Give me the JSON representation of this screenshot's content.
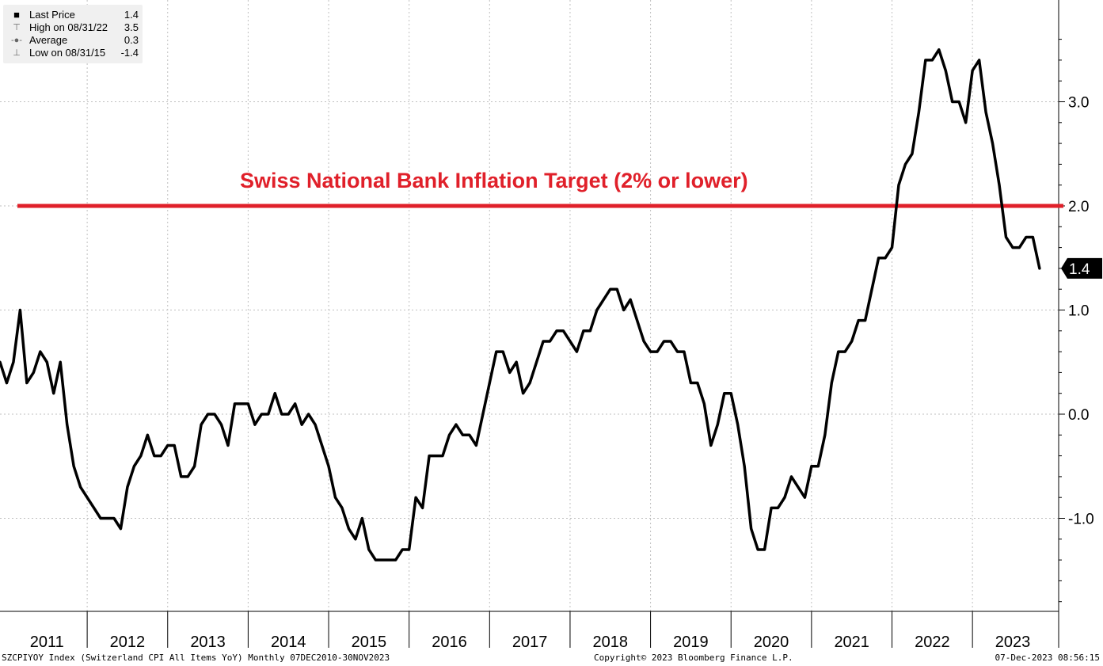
{
  "legend": {
    "items": [
      {
        "label": "Last Price",
        "value": "1.4",
        "icon": "filled-square-icon"
      },
      {
        "label": "High on 08/31/22",
        "value": "3.5",
        "icon": "high-marker-icon"
      },
      {
        "label": "Average",
        "value": "0.3",
        "icon": "average-marker-icon"
      },
      {
        "label": "Low on 08/31/15",
        "value": "-1.4",
        "icon": "low-marker-icon"
      }
    ]
  },
  "annotation": "Swiss National Bank Inflation Target (2% or lower)",
  "last_price_tag": "1.4",
  "footer": {
    "left": "SZCPIYOY Index (Switzerland CPI All Items YoY)  Monthly 07DEC2010-30NOV2023",
    "center": "Copyright© 2023 Bloomberg Finance L.P.",
    "right": "07-Dec-2023 08:56:15"
  },
  "colors": {
    "line": "#000000",
    "target_line": "#e0202a",
    "grid": "#bfbfbf"
  },
  "chart_data": {
    "type": "line",
    "title": "",
    "xlabel": "",
    "ylabel": "",
    "x_categories": [
      "2011",
      "2012",
      "2013",
      "2014",
      "2015",
      "2016",
      "2017",
      "2018",
      "2019",
      "2020",
      "2021",
      "2022",
      "2023"
    ],
    "y_ticks": [
      "3.0",
      "2.0",
      "1.0",
      "0.0",
      "-1.0"
    ],
    "ylim": [
      -1.9,
      3.9
    ],
    "grid": true,
    "legend_position": "top-left",
    "reference_line": {
      "value": 2.0,
      "label": "Swiss National Bank Inflation Target (2% or lower)"
    },
    "series": [
      {
        "name": "Last Price",
        "start": "2010-12",
        "frequency": "monthly",
        "values": [
          0.5,
          0.3,
          0.5,
          1.0,
          0.3,
          0.4,
          0.6,
          0.5,
          0.2,
          0.5,
          -0.1,
          -0.5,
          -0.7,
          -0.8,
          -0.9,
          -1.0,
          -1.0,
          -1.0,
          -1.1,
          -0.7,
          -0.5,
          -0.4,
          -0.2,
          -0.4,
          -0.4,
          -0.3,
          -0.3,
          -0.6,
          -0.6,
          -0.5,
          -0.1,
          0.0,
          0.0,
          -0.1,
          -0.3,
          0.1,
          0.1,
          0.1,
          -0.1,
          0.0,
          0.0,
          0.2,
          0.0,
          0.0,
          0.1,
          -0.1,
          0.0,
          -0.1,
          -0.3,
          -0.5,
          -0.8,
          -0.9,
          -1.1,
          -1.2,
          -1.0,
          -1.3,
          -1.4,
          -1.4,
          -1.4,
          -1.4,
          -1.3,
          -1.3,
          -0.8,
          -0.9,
          -0.4,
          -0.4,
          -0.4,
          -0.2,
          -0.1,
          -0.2,
          -0.2,
          -0.3,
          0.0,
          0.3,
          0.6,
          0.6,
          0.4,
          0.5,
          0.2,
          0.3,
          0.5,
          0.7,
          0.7,
          0.8,
          0.8,
          0.7,
          0.6,
          0.8,
          0.8,
          1.0,
          1.1,
          1.2,
          1.2,
          1.0,
          1.1,
          0.9,
          0.7,
          0.6,
          0.6,
          0.7,
          0.7,
          0.6,
          0.6,
          0.3,
          0.3,
          0.1,
          -0.3,
          -0.1,
          0.2,
          0.2,
          -0.1,
          -0.5,
          -1.1,
          -1.3,
          -1.3,
          -0.9,
          -0.9,
          -0.8,
          -0.6,
          -0.7,
          -0.8,
          -0.5,
          -0.5,
          -0.2,
          0.3,
          0.6,
          0.6,
          0.7,
          0.9,
          0.9,
          1.2,
          1.5,
          1.5,
          1.6,
          2.2,
          2.4,
          2.5,
          2.9,
          3.4,
          3.4,
          3.5,
          3.3,
          3.0,
          3.0,
          2.8,
          3.3,
          3.4,
          2.9,
          2.6,
          2.2,
          1.7,
          1.6,
          1.6,
          1.7,
          1.7,
          1.4
        ]
      }
    ]
  }
}
